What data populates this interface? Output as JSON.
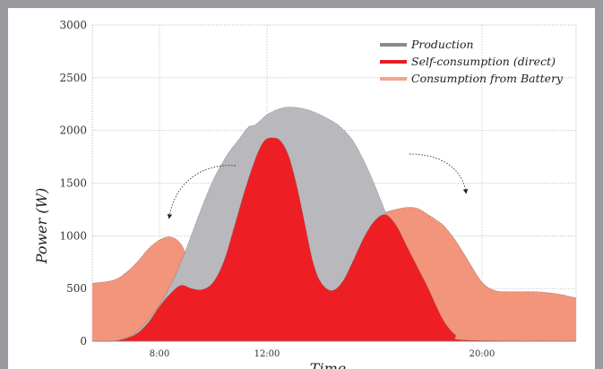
{
  "chart_data": {
    "type": "area",
    "title": "",
    "xlabel": "Time",
    "ylabel": "Power (W)",
    "ylim": [
      0,
      3000
    ],
    "xlim": [
      5.5,
      23.5
    ],
    "x_ticks": [
      {
        "value": 8,
        "label": "8:00"
      },
      {
        "value": 12,
        "label": "12:00"
      },
      {
        "value": 20,
        "label": "20:00"
      }
    ],
    "y_ticks": [
      0,
      500,
      1000,
      1500,
      2000,
      2500,
      3000
    ],
    "grid": true,
    "legend_position": "top-right",
    "series": [
      {
        "name": "Production",
        "color": "#b9b9bd",
        "legend_color": "#8a8a8e",
        "x": [
          5.5,
          6.2,
          6.6,
          7.0,
          7.4,
          7.8,
          8.2,
          8.6,
          9.0,
          9.5,
          10.0,
          10.5,
          11.0,
          11.3,
          11.6,
          12.0,
          12.4,
          12.7,
          13.0,
          13.3,
          13.7,
          14.2,
          14.7,
          15.2,
          15.7,
          16.2,
          16.7,
          17.2,
          17.7,
          18.2,
          18.6,
          19.0,
          19.5,
          23.5
        ],
        "values": [
          0,
          0,
          20,
          60,
          150,
          270,
          430,
          630,
          880,
          1220,
          1530,
          1760,
          1930,
          2030,
          2060,
          2150,
          2200,
          2220,
          2220,
          2210,
          2180,
          2120,
          2040,
          1900,
          1660,
          1360,
          1030,
          720,
          440,
          200,
          70,
          20,
          0,
          0
        ]
      },
      {
        "name": "Self-consumption (direct)",
        "color": "#ee1f24",
        "legend_color": "#e31e24",
        "x": [
          5.5,
          6.3,
          6.8,
          7.2,
          7.6,
          8.0,
          8.4,
          8.8,
          9.2,
          9.6,
          10.0,
          10.4,
          10.8,
          11.2,
          11.6,
          11.9,
          12.2,
          12.5,
          12.8,
          13.1,
          13.4,
          13.7,
          14.0,
          14.4,
          14.8,
          15.2,
          15.6,
          16.0,
          16.4,
          16.8,
          17.2,
          17.6,
          18.0,
          18.3,
          18.6,
          19.0,
          19.4,
          23.5
        ],
        "values": [
          0,
          0,
          30,
          80,
          180,
          330,
          450,
          530,
          500,
          490,
          560,
          760,
          1100,
          1450,
          1750,
          1900,
          1930,
          1900,
          1760,
          1480,
          1120,
          760,
          560,
          480,
          560,
          760,
          980,
          1140,
          1200,
          1100,
          900,
          700,
          500,
          330,
          180,
          60,
          10,
          0
        ]
      },
      {
        "name": "Consumption from Battery",
        "color": "#f2957a",
        "legend_color": "#f4a58a",
        "x": [
          5.5,
          6.3,
          6.8,
          7.2,
          7.6,
          8.0,
          8.4,
          8.8,
          9.2,
          9.6,
          10.0,
          10.4,
          10.8,
          11.2,
          11.6,
          11.9,
          12.2,
          12.5,
          12.8,
          13.1,
          13.4,
          13.7,
          14.0,
          14.4,
          14.8,
          15.2,
          15.6,
          16.0,
          16.4,
          16.8,
          17.2,
          17.6,
          18.0,
          18.3,
          18.6,
          19.0,
          19.4,
          20.0,
          20.5,
          21.0,
          21.5,
          22.0,
          22.5,
          23.0,
          23.5
        ],
        "values": [
          550,
          580,
          660,
          760,
          880,
          960,
          990,
          920,
          700,
          510,
          560,
          760,
          1100,
          1450,
          1750,
          1900,
          1930,
          1900,
          1760,
          1480,
          1120,
          760,
          560,
          480,
          560,
          760,
          980,
          1140,
          1220,
          1250,
          1270,
          1260,
          1200,
          1150,
          1090,
          960,
          800,
          560,
          480,
          470,
          470,
          470,
          460,
          440,
          410
        ]
      }
    ]
  }
}
